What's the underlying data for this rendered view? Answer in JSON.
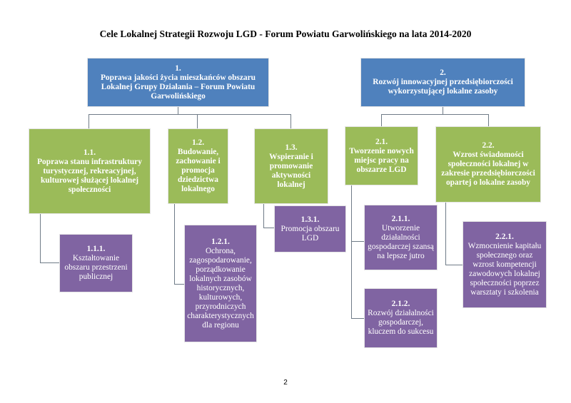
{
  "title": "Cele Lokalnej Strategii Rozwoju LGD - Forum Powiatu Garwolińskiego na lata 2014-2020",
  "goals": {
    "g1": {
      "num": "1.",
      "text": "Poprawa jakości życia mieszkańców obszaru Lokalnej Grupy Działania – Forum Powiatu Garwolińskiego"
    },
    "g2": {
      "num": "2.",
      "text": "Rozwój innowacyjnej przedsiębiorczości wykorzystującej lokalne zasoby"
    }
  },
  "objectives": {
    "o11": {
      "num": "1.1.",
      "text": "Poprawa stanu infrastruktury turystycznej, rekreacyjnej, kulturowej służącej lokalnej społeczności"
    },
    "o12": {
      "num": "1.2.",
      "text": "Budowanie, zachowanie i promocja dziedzictwa lokalnego"
    },
    "o13": {
      "num": "1.3.",
      "text": "Wspieranie i promowanie aktywności lokalnej"
    },
    "o21": {
      "num": "2.1.",
      "text": "Tworzenie nowych miejsc pracy na obszarze LGD"
    },
    "o22": {
      "num": "2.2.",
      "text": "Wzrost świadomości społeczności lokalnej w zakresie przedsiębiorczości opartej o lokalne zasoby"
    }
  },
  "actions": {
    "a111": {
      "num": "1.1.1.",
      "text": "Kształtowanie obszaru przestrzeni publicznej"
    },
    "a121": {
      "num": "1.2.1.",
      "text": "Ochrona, zagospodarowanie, porządkowanie lokalnych zasobów historycznych, kulturowych, przyrodniczych charakterystycznych dla regionu"
    },
    "a131": {
      "num": "1.3.1.",
      "text": "Promocja obszaru LGD"
    },
    "a211": {
      "num": "2.1.1.",
      "text": "Utworzenie działalności gospodarczej szansą na lepsze jutro"
    },
    "a212": {
      "num": "2.1.2.",
      "text": "Rozwój działalności gospodarczej, kluczem do sukcesu"
    },
    "a221": {
      "num": "2.2.1.",
      "text": "Wzmocnienie kapitału społecznego oraz wzrost kompetencji zawodowych lokalnej społeczności poprzez warsztaty i szkolenia"
    }
  },
  "page_number": "2",
  "colors": {
    "goal": "#4f81bd",
    "objective": "#9bbb59",
    "action": "#8064a2",
    "connector": "#6f7b87"
  }
}
